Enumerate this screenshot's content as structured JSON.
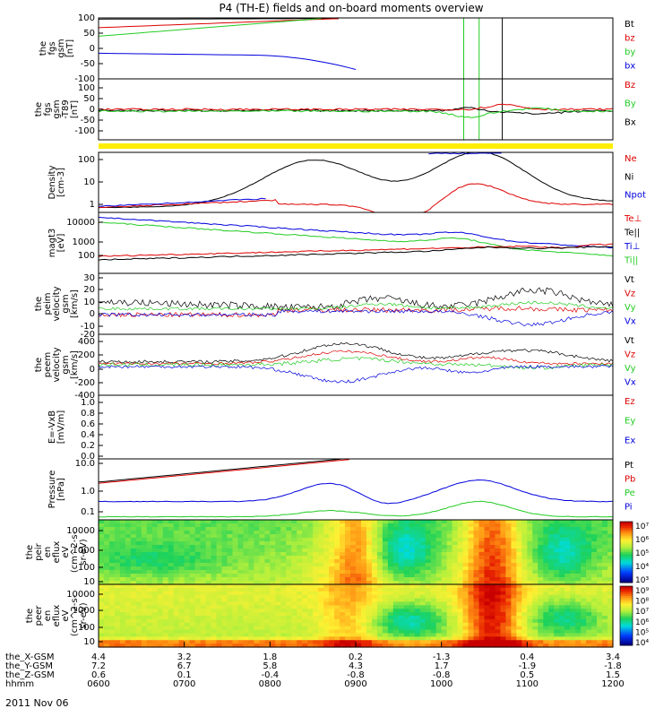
{
  "title": "P4 (TH-E) fields and on-board moments overview",
  "date_label": "2011 Nov 06",
  "colors": {
    "black": "#000000",
    "red": "#dd0000",
    "green": "#22cc22",
    "blue": "#0000dd",
    "yellow": "#ffee00"
  },
  "chart_data": [
    {
      "type": "line",
      "panel": "fgs",
      "ylabel": [
        "the",
        "fgs",
        "gsm",
        "[nT]"
      ],
      "ylim": [
        -100,
        100
      ],
      "yticks": [
        "100",
        "50",
        "0",
        "-50",
        "-100"
      ],
      "series": [
        {
          "name": "Bt",
          "color": "#000000"
        },
        {
          "name": "bz",
          "color": "#dd0000"
        },
        {
          "name": "by",
          "color": "#22cc22"
        },
        {
          "name": "bx",
          "color": "#0000dd"
        }
      ]
    },
    {
      "type": "line",
      "panel": "fgs-minus-t89",
      "ylabel": [
        "the",
        "fgs",
        "gsm",
        "-T89",
        "[nT]"
      ],
      "ylim": [
        -120,
        120
      ],
      "yticks": [
        "100",
        "50",
        "0",
        "-50",
        "-100"
      ],
      "series": [
        {
          "name": "Bz",
          "color": "#dd0000"
        },
        {
          "name": "By",
          "color": "#22cc22"
        },
        {
          "name": "Bx",
          "color": "#000000"
        }
      ]
    },
    {
      "type": "line",
      "panel": "density",
      "ylabel": [
        "Density",
        "[cm-3]"
      ],
      "yscale": "log",
      "yticks": [
        "100",
        "10",
        "1"
      ],
      "series": [
        {
          "name": "Ne",
          "color": "#dd0000"
        },
        {
          "name": "Ni",
          "color": "#000000"
        },
        {
          "name": "Npot",
          "color": "#0000dd"
        }
      ]
    },
    {
      "type": "line",
      "panel": "temperature",
      "ylabel": [
        "magt3",
        "[eV]"
      ],
      "yscale": "log",
      "yticks": [
        "10000",
        "1000",
        "100"
      ],
      "series": [
        {
          "name": "Te⊥",
          "color": "#dd0000"
        },
        {
          "name": "Te||",
          "color": "#000000"
        },
        {
          "name": "Ti⊥",
          "color": "#0000dd"
        },
        {
          "name": "Ti||",
          "color": "#22cc22"
        }
      ]
    },
    {
      "type": "line",
      "panel": "perm-velocity",
      "ylabel": [
        "the",
        "peim",
        "velocity",
        "gsm",
        "[km/s]"
      ],
      "ylim": [
        -20,
        30
      ],
      "yticks": [
        "30",
        "20",
        "10",
        "0",
        "-10",
        "-20"
      ],
      "series": [
        {
          "name": "Vt",
          "color": "#000000"
        },
        {
          "name": "Vz",
          "color": "#dd0000"
        },
        {
          "name": "Vy",
          "color": "#22cc22"
        },
        {
          "name": "Vx",
          "color": "#0000dd"
        }
      ]
    },
    {
      "type": "line",
      "panel": "peem-velocity",
      "ylabel": [
        "the",
        "peem",
        "velocity",
        "gsm",
        "[km/s]"
      ],
      "ylim": [
        -400,
        400
      ],
      "yticks": [
        "400",
        "200",
        "0",
        "-200",
        "-400"
      ],
      "series": [
        {
          "name": "Vt",
          "color": "#000000"
        },
        {
          "name": "Vz",
          "color": "#dd0000"
        },
        {
          "name": "Vy",
          "color": "#22cc22"
        },
        {
          "name": "Vx",
          "color": "#0000dd"
        }
      ]
    },
    {
      "type": "line",
      "panel": "e-field",
      "ylabel": [
        "E=-VxB",
        "[mV/m]"
      ],
      "ylim": [
        0,
        1
      ],
      "yticks": [
        "1.0",
        "0.8",
        "0.6",
        "0.4",
        "0.2",
        "0.0"
      ],
      "series": [
        {
          "name": "Ez",
          "color": "#dd0000"
        },
        {
          "name": "Ey",
          "color": "#22cc22"
        },
        {
          "name": "Ex",
          "color": "#0000dd"
        }
      ]
    },
    {
      "type": "line",
      "panel": "pressure",
      "ylabel": [
        "Pressure",
        "[nPa]"
      ],
      "yscale": "log",
      "yticks": [
        "10.0",
        "1.0",
        "0.1"
      ],
      "series": [
        {
          "name": "Pt",
          "color": "#000000"
        },
        {
          "name": "Pb",
          "color": "#dd0000"
        },
        {
          "name": "Pe",
          "color": "#22cc22"
        },
        {
          "name": "Pi",
          "color": "#0000dd"
        }
      ]
    },
    {
      "type": "heatmap",
      "panel": "ion-spectrogram",
      "ylabel": [
        "the",
        "peir",
        "en",
        "eflux",
        "eV",
        "(cm^2-s-",
        "sr-eV)"
      ],
      "yscale": "log",
      "yticks": [
        "10000",
        "1000",
        "100",
        "10"
      ],
      "colorbar_ticks": [
        "10⁷",
        "10⁶",
        "10⁵",
        "10⁴",
        "10³"
      ]
    },
    {
      "type": "heatmap",
      "panel": "electron-spectrogram",
      "ylabel": [
        "the",
        "peer",
        "en",
        "eflux",
        "eV",
        "(cm^2-s-",
        "sr-eV)"
      ],
      "yscale": "log",
      "yticks": [
        "10000",
        "1000",
        "100",
        "10"
      ],
      "colorbar_ticks": [
        "10⁹",
        "10⁸",
        "10⁷",
        "10⁶",
        "10⁵",
        "10⁴"
      ]
    }
  ],
  "x_axis": {
    "rows": [
      {
        "label": "the_X-GSM",
        "values": [
          "4.4",
          "3.2",
          "1.8",
          "0.2",
          "-1.3",
          "0.4",
          "3.4"
        ]
      },
      {
        "label": "the_Y-GSM",
        "values": [
          "7.2",
          "6.7",
          "5.8",
          "4.3",
          "1.7",
          "-1.9",
          "-1.8"
        ]
      },
      {
        "label": "the_Z-GSM",
        "values": [
          "0.6",
          "0.1",
          "-0.4",
          "-0.8",
          "-0.8",
          "0.5",
          "1.5"
        ]
      },
      {
        "label": "hhmm",
        "values": [
          "0600",
          "0700",
          "0800",
          "0900",
          "1000",
          "1100",
          "1200"
        ]
      }
    ]
  }
}
